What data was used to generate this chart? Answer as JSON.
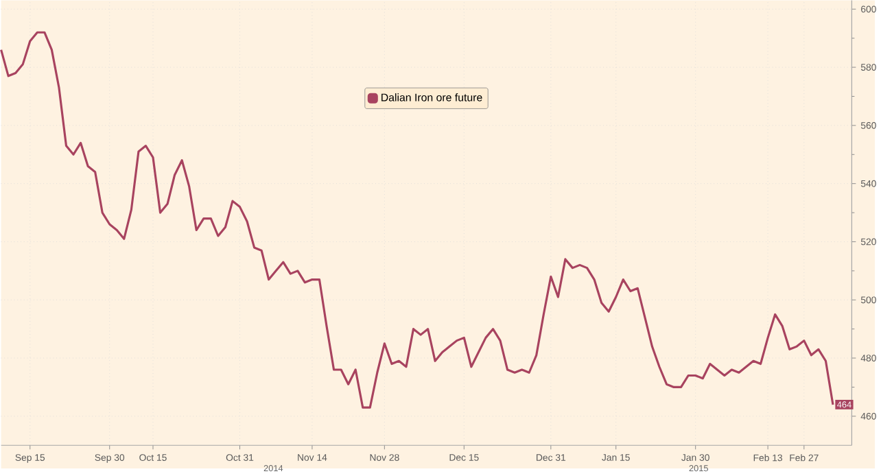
{
  "chart_data": {
    "type": "line",
    "categories": [
      null,
      null,
      null,
      null,
      "Sep 15",
      null,
      null,
      null,
      null,
      null,
      null,
      null,
      null,
      null,
      null,
      "Sep 30",
      null,
      null,
      null,
      null,
      null,
      "Oct 15",
      null,
      null,
      null,
      null,
      null,
      null,
      null,
      null,
      null,
      null,
      null,
      "Oct 31",
      null,
      null,
      null,
      null,
      null,
      null,
      null,
      null,
      null,
      "Nov 14",
      null,
      null,
      null,
      null,
      null,
      null,
      null,
      null,
      null,
      "Nov 28",
      null,
      null,
      null,
      null,
      null,
      null,
      null,
      null,
      null,
      null,
      "Dec 15",
      null,
      null,
      null,
      null,
      null,
      null,
      null,
      null,
      null,
      null,
      null,
      "Dec 31",
      null,
      null,
      null,
      null,
      null,
      null,
      null,
      null,
      "Jan 15",
      null,
      null,
      null,
      null,
      null,
      null,
      null,
      null,
      null,
      null,
      "Jan 30",
      null,
      null,
      null,
      null,
      null,
      null,
      null,
      null,
      null,
      "Feb 13",
      null,
      null,
      null,
      null,
      "Feb 27",
      null,
      null,
      null,
      null
    ],
    "series": [
      {
        "name": "Dalian Iron ore future",
        "color": "#a8435f",
        "values": [
          586,
          577,
          578,
          581,
          589,
          592,
          592,
          586,
          573,
          553,
          550,
          554,
          546,
          544,
          530,
          526,
          524,
          521,
          531,
          551,
          553,
          549,
          530,
          533,
          543,
          548,
          539,
          524,
          528,
          528,
          522,
          525,
          534,
          532,
          527,
          518,
          517,
          507,
          510,
          513,
          509,
          510,
          506,
          507,
          507,
          491,
          476,
          476,
          471,
          476,
          463,
          463,
          475,
          485,
          478,
          479,
          477,
          490,
          488,
          490,
          479,
          482,
          484,
          486,
          487,
          477,
          482,
          487,
          490,
          486,
          476,
          475,
          476,
          475,
          481,
          495,
          508,
          501,
          514,
          511,
          512,
          511,
          507,
          499,
          496,
          501,
          507,
          503,
          504,
          494,
          484,
          477,
          471,
          470,
          470,
          474,
          474,
          473,
          478,
          476,
          474,
          476,
          475,
          477,
          479,
          478,
          487,
          495,
          491,
          483,
          484,
          486,
          481,
          483,
          479,
          464
        ],
        "value_labels": [
          null,
          null,
          null,
          null,
          null,
          null,
          null,
          null,
          null,
          null,
          null,
          null,
          null,
          null,
          null,
          null,
          null,
          null,
          null,
          null,
          null,
          null,
          null,
          null,
          null,
          null,
          null,
          null,
          null,
          null,
          null,
          null,
          null,
          null,
          null,
          null,
          null,
          null,
          null,
          null,
          null,
          null,
          null,
          null,
          null,
          null,
          null,
          null,
          null,
          null,
          null,
          null,
          null,
          null,
          null,
          null,
          null,
          null,
          null,
          null,
          null,
          null,
          null,
          null,
          null,
          null,
          null,
          null,
          null,
          null,
          null,
          null,
          null,
          null,
          null,
          null,
          null,
          null,
          null,
          null,
          null,
          null,
          null,
          null,
          null,
          null,
          null,
          null,
          null,
          null,
          null,
          null,
          null,
          null,
          null,
          null,
          null,
          null,
          null,
          null,
          null,
          null,
          null,
          null,
          null,
          null,
          null,
          null,
          null,
          null,
          null,
          null,
          null,
          null,
          null,
          "464"
        ]
      }
    ],
    "annotations": [
      "2014",
      "2015"
    ],
    "ylim": [
      450,
      603
    ],
    "yticks": [
      460,
      {
        "value": 470,
        "label": null
      },
      480,
      {
        "value": 490,
        "label": null
      },
      500,
      {
        "value": 510,
        "label": null
      },
      520,
      {
        "value": 530,
        "label": null
      },
      540,
      {
        "value": 550,
        "label": null
      },
      560,
      {
        "value": 570,
        "label": null
      },
      580,
      {
        "value": 590,
        "label": null
      },
      600
    ],
    "grid": true,
    "legend": "top"
  }
}
